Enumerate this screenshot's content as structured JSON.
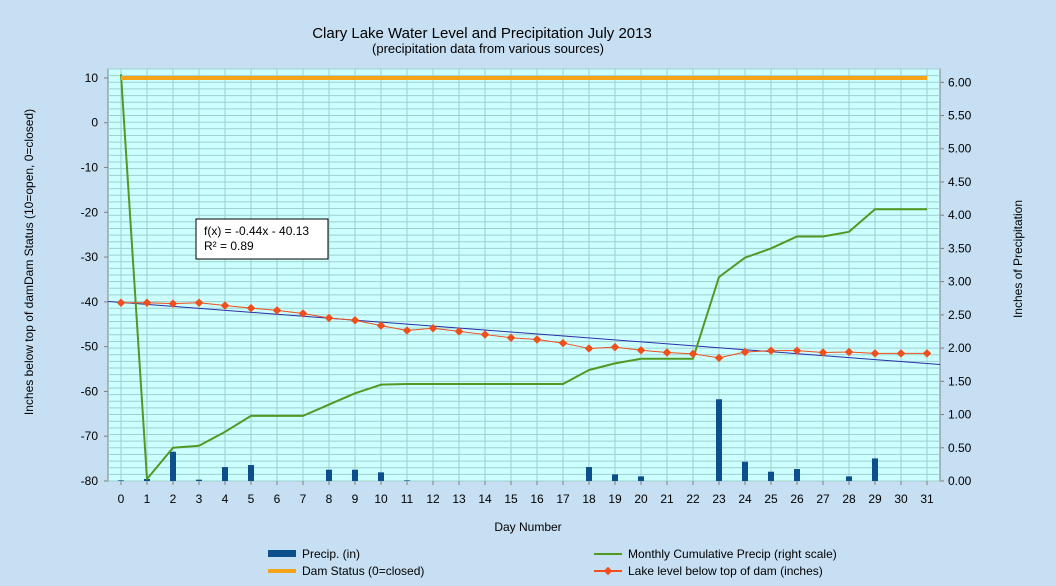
{
  "chart_data": {
    "type": "bar+line",
    "title": "Clary Lake Water Level and Precipitation July 2013",
    "subtitle": "(precipitation data from various sources)",
    "xlabel": "Day Number",
    "ylabel_left": "Inches  below top of damDam Status (10=open, 0=closed)",
    "ylabel_right": "Inches  of  Precipitation",
    "x": [
      0,
      1,
      2,
      3,
      4,
      5,
      6,
      7,
      8,
      9,
      10,
      11,
      12,
      13,
      14,
      15,
      16,
      17,
      18,
      19,
      20,
      21,
      22,
      23,
      24,
      25,
      26,
      27,
      28,
      29,
      30,
      31
    ],
    "x_ticks": [
      "0",
      "1",
      "2",
      "3",
      "4",
      "5",
      "6",
      "7",
      "8",
      "9",
      "10",
      "11",
      "12",
      "13",
      "14",
      "15",
      "16",
      "17",
      "18",
      "19",
      "20",
      "21",
      "22",
      "23",
      "24",
      "25",
      "26",
      "27",
      "28",
      "29",
      "30",
      "31"
    ],
    "xlim": [
      -0.5,
      31.5
    ],
    "ylim_left": [
      -80,
      12
    ],
    "ylim_right": [
      0,
      6.2
    ],
    "yticks_left": [
      10,
      0,
      -10,
      -20,
      -30,
      -40,
      -50,
      -60,
      -70,
      -80
    ],
    "yticks_right": [
      "6.00",
      "5.50",
      "5.00",
      "4.50",
      "4.00",
      "3.50",
      "3.00",
      "2.50",
      "2.00",
      "1.50",
      "1.00",
      "0.50",
      "0.00"
    ],
    "series": [
      {
        "name": "Precip. (in)",
        "axis": "right",
        "kind": "bar",
        "color": "#0b4f8c",
        "values": [
          0.01,
          0.03,
          0.44,
          0.02,
          0.21,
          0.24,
          0,
          0,
          0.17,
          0.17,
          0.13,
          0.01,
          0,
          0,
          0,
          0,
          0,
          0,
          0.21,
          0.1,
          0.07,
          0,
          0,
          1.23,
          0.29,
          0.14,
          0.18,
          0,
          0.07,
          0.34,
          0,
          0
        ]
      },
      {
        "name": "Monthly Cumulative Precip (right scale)",
        "axis": "right",
        "kind": "line",
        "color": "#4e9a23",
        "values": [
          6.12,
          0.03,
          0.5,
          0.53,
          0.74,
          0.98,
          0.98,
          0.98,
          1.15,
          1.32,
          1.45,
          1.46,
          1.46,
          1.46,
          1.46,
          1.46,
          1.46,
          1.46,
          1.67,
          1.77,
          1.84,
          1.84,
          1.84,
          3.07,
          3.36,
          3.5,
          3.68,
          3.68,
          3.75,
          4.09,
          4.09,
          4.09
        ]
      },
      {
        "name": "Dam Status (0=closed)",
        "axis": "left",
        "kind": "line",
        "color": "#f5a31a",
        "values": [
          10,
          10,
          10,
          10,
          10,
          10,
          10,
          10,
          10,
          10,
          10,
          10,
          10,
          10,
          10,
          10,
          10,
          10,
          10,
          10,
          10,
          10,
          10,
          10,
          10,
          10,
          10,
          10,
          10,
          10,
          10,
          10
        ]
      },
      {
        "name": "Lake level below top of dam (inches)",
        "axis": "left",
        "kind": "line+markers",
        "color": "#f04e1a",
        "values": [
          -40.2,
          -40.2,
          -40.4,
          -40.2,
          -40.8,
          -41.4,
          -41.9,
          -42.6,
          -43.6,
          -44.1,
          -45.3,
          -46.4,
          -45.9,
          -46.6,
          -47.3,
          -48.0,
          -48.4,
          -49.2,
          -50.4,
          -50.1,
          -50.8,
          -51.3,
          -51.6,
          -52.5,
          -51.2,
          -50.9,
          -50.9,
          -51.3,
          -51.2,
          -51.5,
          -51.5,
          -51.5
        ]
      },
      {
        "name": "trend",
        "axis": "left",
        "kind": "trendline",
        "color": "#2b2fa8",
        "slope": -0.44,
        "intercept": -40.13
      }
    ],
    "trend_label": {
      "equation": "f(x) = -0.44x - 40.13",
      "r2": "R² = 0.89"
    },
    "legend": {
      "placement": "bottom",
      "items": [
        {
          "label": "Precip. (in)",
          "color": "#0b4f8c",
          "kind": "bar"
        },
        {
          "label": "Monthly Cumulative Precip (right scale)",
          "color": "#4e9a23",
          "kind": "line"
        },
        {
          "label": "Dam Status (0=closed)",
          "color": "#f5a31a",
          "kind": "line"
        },
        {
          "label": "Lake level below top of dam (inches)",
          "color": "#f04e1a",
          "kind": "line+marker"
        }
      ]
    },
    "grid": true,
    "plot_background": "#ccffff"
  }
}
